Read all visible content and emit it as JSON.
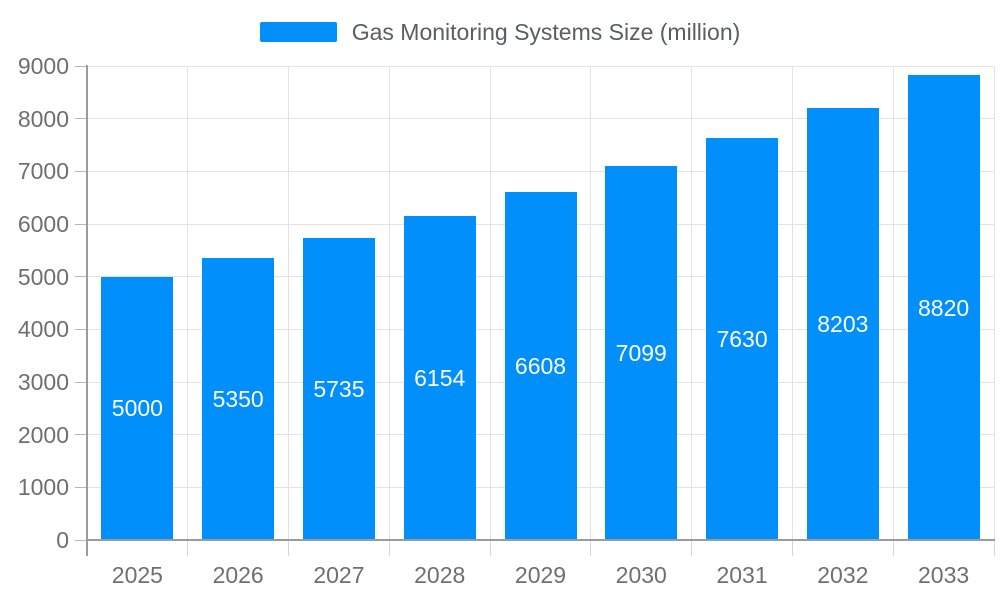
{
  "legend": {
    "label": "Gas Monitoring Systems Size (million)"
  },
  "chart_data": {
    "type": "bar",
    "title": "",
    "xlabel": "",
    "ylabel": "",
    "series_name": "Gas Monitoring Systems Size (million)",
    "categories": [
      "2025",
      "2026",
      "2027",
      "2028",
      "2029",
      "2030",
      "2031",
      "2032",
      "2033"
    ],
    "values": [
      5000,
      5350,
      5735,
      6154,
      6608,
      7099,
      7630,
      8203,
      8820
    ],
    "value_labels": [
      "5000",
      "5350",
      "5735",
      "6154",
      "6608",
      "7099",
      "7630",
      "8203",
      "8820"
    ],
    "ylim": [
      0,
      9000
    ],
    "ytick_step": 1000,
    "ytick_labels": [
      "0",
      "1000",
      "2000",
      "3000",
      "4000",
      "5000",
      "6000",
      "7000",
      "8000",
      "9000"
    ],
    "grid": true,
    "legend_position": "top",
    "bar_color": "#008FFB",
    "value_label_color": "#ffffff"
  }
}
